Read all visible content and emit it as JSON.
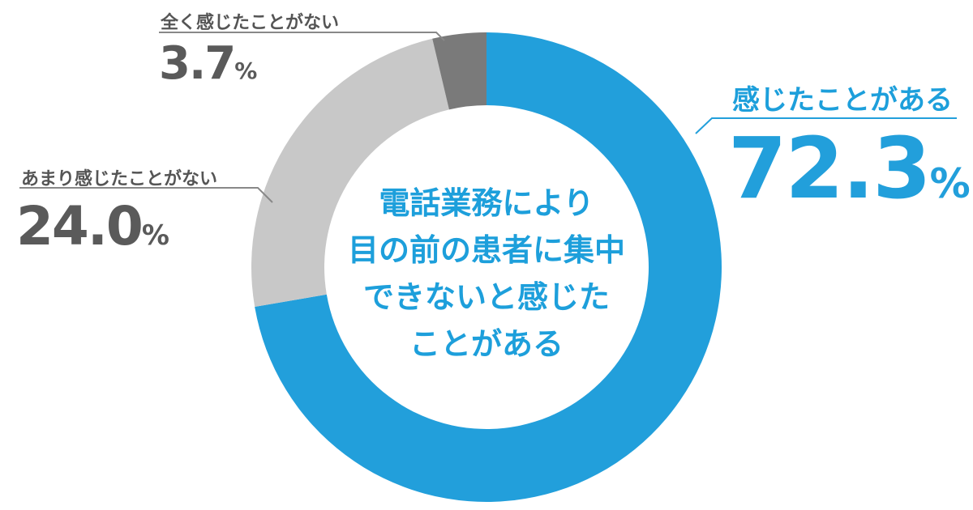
{
  "chart_data": {
    "type": "pie",
    "title_lines": [
      "電話業務により",
      "目の前の患者に集中",
      "できないと感じた",
      "ことがある"
    ],
    "slices": [
      {
        "label": "感じたことがある",
        "value": 72.3,
        "display": "72.3",
        "unit": "%",
        "color": "#229fdb"
      },
      {
        "label": "あまり感じたことがない",
        "value": 24.0,
        "display": "24.0",
        "unit": "%",
        "color": "#c8c8c8"
      },
      {
        "label": "全く感じたことがない",
        "value": 3.7,
        "display": "3.7",
        "unit": "%",
        "color": "#7a7a7a"
      }
    ],
    "style": "donut",
    "start": "top",
    "direction": "clockwise"
  },
  "colors": {
    "accent": "#229fdb",
    "label_blue": "#1d9fdb",
    "label_gray": "#555555",
    "value_gray": "#5a5a5a",
    "leader_gray": "#888888"
  }
}
